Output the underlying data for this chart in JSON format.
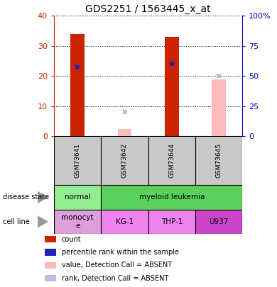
{
  "title": "GDS2251 / 1563445_x_at",
  "samples": [
    "GSM73641",
    "GSM73642",
    "GSM73644",
    "GSM73645"
  ],
  "count_values": [
    34,
    0,
    33,
    0
  ],
  "rank_values": [
    23,
    0,
    24,
    0
  ],
  "absent_value_values": [
    0,
    2.5,
    0,
    19
  ],
  "absent_rank_values": [
    0,
    8,
    0,
    20
  ],
  "ylim_left": [
    0,
    40
  ],
  "ylim_right": [
    0,
    100
  ],
  "yticks_left": [
    0,
    10,
    20,
    30,
    40
  ],
  "yticks_right": [
    0,
    25,
    50,
    75,
    100
  ],
  "ytick_labels_right": [
    "0",
    "25",
    "50",
    "75",
    "100%"
  ],
  "normal_color": "#90EE90",
  "leukemia_color": "#5AD15A",
  "monocyte_color": "#DDA0DD",
  "cell_line_colors": [
    "#DDA0DD",
    "#EE82EE",
    "#EE82EE",
    "#CC44CC"
  ],
  "bar_color_count": "#CC2200",
  "bar_color_rank": "#2222BB",
  "bar_color_absent_value": "#FFBBBB",
  "bar_color_absent_rank": "#BBBBDD",
  "sample_box_color": "#C8C8C8",
  "bg_color": "#FFFFFF",
  "left_axis_color": "#CC2200",
  "right_axis_color": "#0000CC",
  "cell_line_labels": [
    "monocyt\ne",
    "KG-1",
    "THP-1",
    "U937"
  ],
  "bar_width": 0.3
}
